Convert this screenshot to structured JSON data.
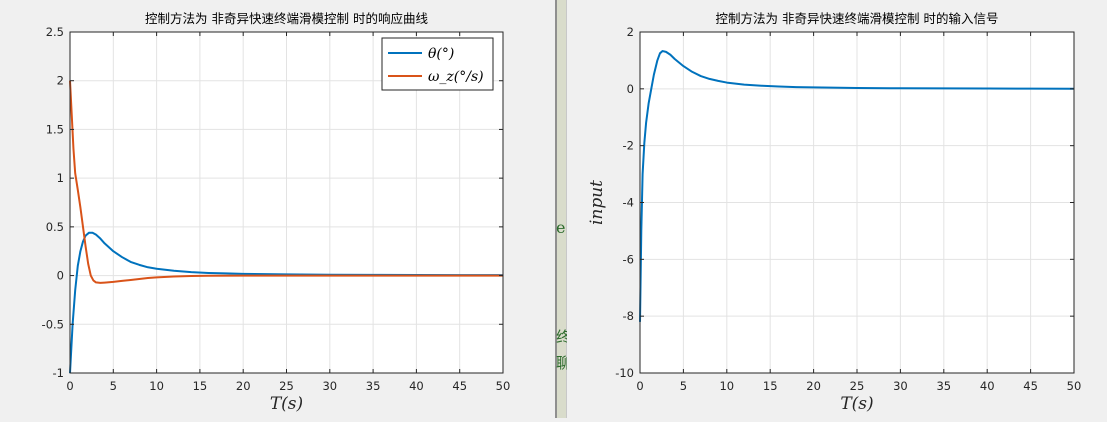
{
  "chart_data": [
    {
      "type": "line",
      "title": "控制方法为 非奇异快速终端滑模控制 时的响应曲线",
      "xlabel": "T(s)",
      "ylabel": "",
      "xlim": [
        0,
        50
      ],
      "ylim": [
        -1,
        2.5
      ],
      "xticks": [
        "0",
        "5",
        "10",
        "15",
        "20",
        "25",
        "30",
        "35",
        "40",
        "45",
        "50"
      ],
      "yticks": [
        "-1",
        "-0.5",
        "0",
        "0.5",
        "1",
        "1.5",
        "2",
        "2.5"
      ],
      "grid": true,
      "legend_position": "top-right",
      "series": [
        {
          "name": "θ(°)",
          "color": "#0072BD",
          "x": [
            0,
            0.3,
            0.6,
            0.9,
            1.2,
            1.5,
            1.8,
            2.2,
            2.6,
            3,
            3.5,
            4,
            5,
            6,
            7,
            8,
            9,
            10,
            12,
            14,
            16,
            18,
            20,
            25,
            30,
            35,
            40,
            45,
            50
          ],
          "y": [
            -1,
            -0.5,
            -0.15,
            0.1,
            0.25,
            0.35,
            0.41,
            0.44,
            0.44,
            0.42,
            0.38,
            0.33,
            0.25,
            0.19,
            0.14,
            0.11,
            0.085,
            0.07,
            0.05,
            0.035,
            0.027,
            0.022,
            0.018,
            0.012,
            0.009,
            0.007,
            0.006,
            0.005,
            0.004
          ]
        },
        {
          "name": "ω_z(°/s)",
          "color": "#D95319",
          "x": [
            0,
            0.2,
            0.4,
            0.6,
            0.9,
            1.2,
            1.5,
            1.8,
            2.1,
            2.4,
            2.7,
            3,
            3.5,
            4,
            5,
            6,
            7,
            8,
            9,
            10,
            12,
            14,
            16,
            20,
            30,
            40,
            50
          ],
          "y": [
            2.0,
            1.65,
            1.3,
            1.05,
            0.88,
            0.7,
            0.5,
            0.3,
            0.12,
            0.0,
            -0.05,
            -0.07,
            -0.075,
            -0.072,
            -0.065,
            -0.055,
            -0.045,
            -0.035,
            -0.025,
            -0.018,
            -0.01,
            -0.005,
            -0.002,
            0,
            0,
            0,
            0
          ]
        }
      ]
    },
    {
      "type": "line",
      "title": "控制方法为 非奇异快速终端滑模控制 时的输入信号",
      "xlabel": "T(s)",
      "ylabel": "input",
      "xlim": [
        0,
        50
      ],
      "ylim": [
        -10,
        2
      ],
      "xticks": [
        "0",
        "5",
        "10",
        "15",
        "20",
        "25",
        "30",
        "35",
        "40",
        "45",
        "50"
      ],
      "yticks": [
        "-10",
        "-8",
        "-6",
        "-4",
        "-2",
        "0",
        "2"
      ],
      "grid": true,
      "series": [
        {
          "color": "#0072BD",
          "x": [
            0,
            0.15,
            0.3,
            0.5,
            0.7,
            1,
            1.3,
            1.6,
            2,
            2.3,
            2.6,
            3,
            3.5,
            4,
            5,
            6,
            7,
            8,
            9,
            10,
            12,
            14,
            16,
            18,
            20,
            25,
            30,
            35,
            40,
            45,
            50
          ],
          "y": [
            -8.2,
            -5,
            -3,
            -1.9,
            -1.2,
            -0.5,
            0,
            0.5,
            1.0,
            1.25,
            1.33,
            1.3,
            1.2,
            1.05,
            0.8,
            0.6,
            0.45,
            0.35,
            0.28,
            0.22,
            0.15,
            0.11,
            0.08,
            0.06,
            0.05,
            0.03,
            0.02,
            0.015,
            0.01,
            0.008,
            0.005
          ]
        }
      ]
    }
  ],
  "background_fragments": {
    "mid": "e",
    "low1": "终",
    "low2": "聊"
  }
}
